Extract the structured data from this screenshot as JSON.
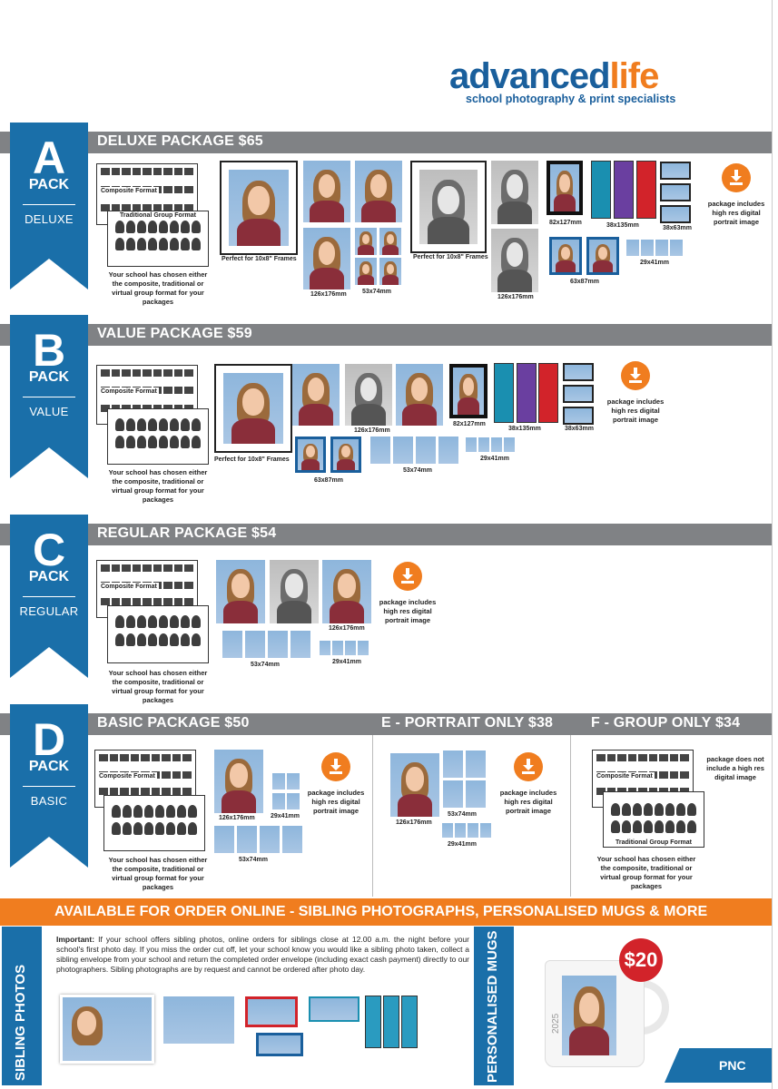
{
  "brand": {
    "name_part1": "advanced",
    "name_part2": "life",
    "tagline": "school photography & print specialists"
  },
  "packages": {
    "a": {
      "letter": "A",
      "pack": "PACK",
      "sub": "DELUXE",
      "title": "DELUXE PACKAGE $65",
      "composite": "Composite Format",
      "group": "Traditional Group Format",
      "note": "Your school has chosen either the composite, traditional or virtual group format for your packages",
      "frame1": "Perfect for 10x8\" Frames",
      "frame2": "Perfect for 10x8\" Frames",
      "sizes": [
        "126x176mm",
        "53x74mm",
        "126x176mm",
        "82x127mm",
        "38x135mm",
        "38x63mm",
        "63x87mm",
        "29x41mm"
      ],
      "digital": "package includes high res digital portrait image"
    },
    "b": {
      "letter": "B",
      "pack": "PACK",
      "sub": "VALUE",
      "title": "VALUE PACKAGE $59",
      "composite": "Composite Format",
      "note": "Your school has chosen either the composite, traditional or virtual group format for your packages",
      "frame1": "Perfect for 10x8\" Frames",
      "sizes": [
        "126x176mm",
        "82x127mm",
        "38x135mm",
        "38x63mm",
        "63x87mm",
        "53x74mm",
        "29x41mm"
      ],
      "digital": "package includes high res digital portrait image"
    },
    "c": {
      "letter": "C",
      "pack": "PACK",
      "sub": "REGULAR",
      "title": "REGULAR PACKAGE $54",
      "composite": "Composite Format",
      "note": "Your school has chosen either the composite, traditional or virtual group format for your packages",
      "sizes": [
        "126x176mm",
        "53x74mm",
        "29x41mm"
      ],
      "digital": "package includes high res digital portrait image"
    },
    "d": {
      "letter": "D",
      "pack": "PACK",
      "sub": "BASIC",
      "title": "BASIC PACKAGE $50",
      "composite": "Composite Format",
      "note": "Your school has chosen either the composite, traditional or virtual group format for your packages",
      "sizes": [
        "126x176mm",
        "29x41mm",
        "53x74mm"
      ],
      "digital": "package includes high res digital portrait image"
    },
    "e": {
      "title": "E - PORTRAIT ONLY $38",
      "sizes": [
        "126x176mm",
        "53x74mm",
        "29x41mm"
      ],
      "digital": "package includes high res digital portrait image"
    },
    "f": {
      "title": "F - GROUP ONLY $34",
      "composite": "Composite Format",
      "group": "Traditional Group Format",
      "digital": "package does not include a high res digital image",
      "note": "Your school has chosen either the composite, traditional or virtual group format for your packages"
    }
  },
  "online": {
    "banner": "AVAILABLE FOR ORDER ONLINE - SIBLING PHOTOGRAPHS, PERSONALISED MUGS & MORE",
    "sibling_label": "SIBLING PHOTOS",
    "mugs_label": "PERSONALISED MUGS",
    "important_label": "Important:",
    "important_text": "If your school offers sibling photos, online orders for siblings close at 12.00 a.m. the night before your school's first photo day. If you miss the order cut off, let your school know you would like a sibling photo taken, collect a sibling envelope from your school and return the completed order envelope (including exact cash payment) directly to our photographers. Sibling photographs are by request and cannot be ordered after photo day.",
    "mug_price": "$20",
    "mug_year": "2025"
  },
  "footer": {
    "code": "PNC"
  },
  "colors": {
    "blue": "#1a6fa9",
    "orange": "#f07d1f",
    "gray": "#808285",
    "red": "#d2232a"
  }
}
